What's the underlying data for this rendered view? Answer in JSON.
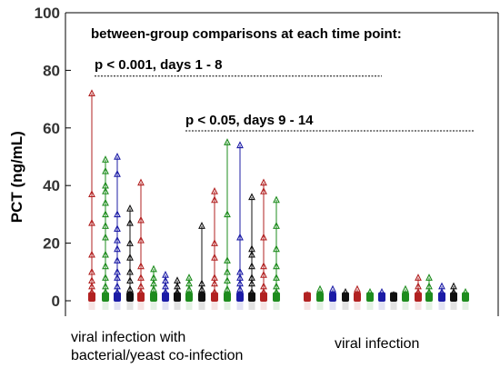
{
  "chart_data": {
    "type": "scatter",
    "ylabel": "PCT (ng/mL)",
    "ylim": [
      -5,
      100
    ],
    "yticks": [
      0,
      20,
      40,
      60,
      80,
      100
    ],
    "grid": false,
    "annotations": [
      {
        "id": "header",
        "text": "between-group comparisons at each time point:"
      },
      {
        "id": "p1",
        "text": "p < 0.001, days 1 - 8",
        "line_y": 78
      },
      {
        "id": "p2",
        "text": "p < 0.05, days 9 - 14",
        "line_y": 59
      }
    ],
    "groups": [
      {
        "label": "viral infection with bacterial/yeast co-infection",
        "lines": [
          "viral infection with",
          "bacterial/yeast co-infection"
        ]
      },
      {
        "label": "viral infection",
        "lines": [
          "viral infection"
        ]
      }
    ],
    "series_colors": {
      "red": "#b22222",
      "green": "#1e8c1e",
      "blue": "#1c1ca6",
      "black": "#111111"
    },
    "columns": [
      {
        "group": 0,
        "color": "red",
        "max": 72,
        "points": [
          72,
          37,
          27,
          16,
          10,
          7,
          5,
          3,
          1
        ]
      },
      {
        "group": 0,
        "color": "green",
        "max": 49,
        "points": [
          49,
          45,
          40,
          38,
          34,
          30,
          26,
          22,
          16,
          12,
          8,
          5,
          3,
          1
        ]
      },
      {
        "group": 0,
        "color": "blue",
        "max": 50,
        "points": [
          50,
          44,
          30,
          25,
          21,
          18,
          14,
          10,
          8,
          5,
          3,
          1
        ]
      },
      {
        "group": 0,
        "color": "black",
        "max": 32,
        "points": [
          32,
          27,
          20,
          15,
          10,
          7,
          4,
          2
        ]
      },
      {
        "group": 0,
        "color": "red",
        "max": 41,
        "points": [
          41,
          28,
          21,
          12,
          8,
          5,
          3,
          1
        ]
      },
      {
        "group": 0,
        "color": "green",
        "max": 11,
        "points": [
          11,
          8,
          6,
          4,
          2,
          1
        ]
      },
      {
        "group": 0,
        "color": "blue",
        "max": 9,
        "points": [
          9,
          7,
          5,
          3,
          2,
          1
        ]
      },
      {
        "group": 0,
        "color": "black",
        "max": 7,
        "points": [
          7,
          5,
          3,
          2,
          1
        ]
      },
      {
        "group": 0,
        "color": "green",
        "max": 8,
        "points": [
          8,
          6,
          4,
          2,
          1
        ]
      },
      {
        "group": 0,
        "color": "black",
        "max": 26,
        "points": [
          26,
          6,
          4,
          2,
          1
        ]
      },
      {
        "group": 0,
        "color": "red",
        "max": 38,
        "points": [
          38,
          35,
          20,
          15,
          8,
          6,
          3,
          1
        ]
      },
      {
        "group": 0,
        "color": "green",
        "max": 55,
        "points": [
          55,
          30,
          14,
          10,
          7,
          4,
          2,
          1
        ]
      },
      {
        "group": 0,
        "color": "blue",
        "max": 54,
        "points": [
          54,
          22,
          10,
          8,
          6,
          4,
          2,
          1
        ]
      },
      {
        "group": 0,
        "color": "black",
        "max": 36,
        "points": [
          36,
          18,
          16,
          12,
          8,
          6,
          3,
          1
        ]
      },
      {
        "group": 0,
        "color": "red",
        "max": 41,
        "points": [
          41,
          38,
          22,
          12,
          9,
          5,
          3,
          1
        ]
      },
      {
        "group": 0,
        "color": "green",
        "max": 35,
        "points": [
          35,
          26,
          18,
          12,
          8,
          5,
          3,
          1
        ]
      },
      {
        "group": 1,
        "color": "red",
        "max": 2,
        "points": [
          2,
          1
        ]
      },
      {
        "group": 1,
        "color": "green",
        "max": 4,
        "points": [
          4,
          2,
          1
        ]
      },
      {
        "group": 1,
        "color": "blue",
        "max": 4,
        "points": [
          4,
          2,
          1
        ]
      },
      {
        "group": 1,
        "color": "black",
        "max": 3,
        "points": [
          3,
          1
        ]
      },
      {
        "group": 1,
        "color": "red",
        "max": 4,
        "points": [
          4,
          2,
          1
        ]
      },
      {
        "group": 1,
        "color": "green",
        "max": 3,
        "points": [
          3,
          1
        ]
      },
      {
        "group": 1,
        "color": "blue",
        "max": 3,
        "points": [
          3,
          1
        ]
      },
      {
        "group": 1,
        "color": "black",
        "max": 2,
        "points": [
          2,
          1
        ]
      },
      {
        "group": 1,
        "color": "green",
        "max": 4,
        "points": [
          4,
          2,
          1
        ]
      },
      {
        "group": 1,
        "color": "red",
        "max": 8,
        "points": [
          8,
          5,
          3,
          1
        ]
      },
      {
        "group": 1,
        "color": "green",
        "max": 8,
        "points": [
          8,
          5,
          3,
          1
        ]
      },
      {
        "group": 1,
        "color": "blue",
        "max": 5,
        "points": [
          5,
          3,
          1
        ]
      },
      {
        "group": 1,
        "color": "black",
        "max": 5,
        "points": [
          5,
          3,
          1
        ]
      },
      {
        "group": 1,
        "color": "green",
        "max": 3,
        "points": [
          3,
          1
        ]
      }
    ]
  }
}
